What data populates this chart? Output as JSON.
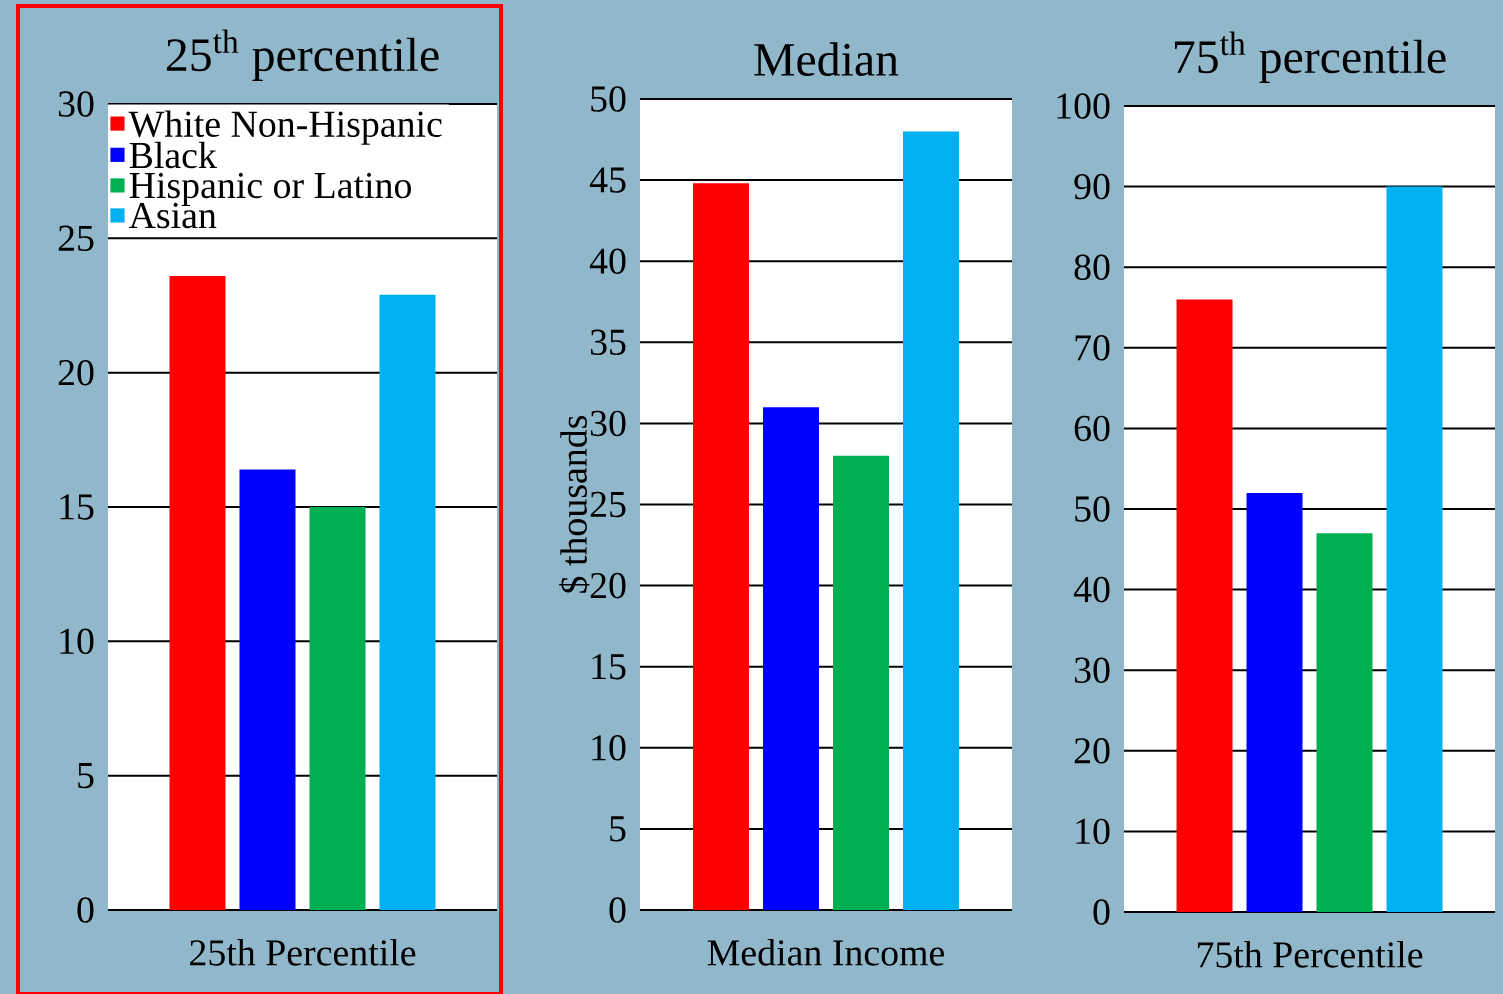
{
  "chart_data": [
    {
      "type": "bar",
      "title": "25$^{th}$ percentile",
      "categories": [
        "25th Percentile"
      ],
      "ylim": [
        0,
        30
      ],
      "yticks": [
        0,
        5,
        10,
        15,
        20,
        25,
        30
      ],
      "grid": "y",
      "legend": "top left",
      "series": [
        {
          "name": "White Non-Hispanic",
          "color": "#ff0000",
          "values": [
            23.6
          ]
        },
        {
          "name": "Black",
          "color": "#0000ff",
          "values": [
            16.4
          ]
        },
        {
          "name": "Hispanic or Latino",
          "color": "#00b050",
          "values": [
            15.0
          ]
        },
        {
          "name": "Asian",
          "color": "#00b0f0",
          "values": [
            22.9
          ]
        }
      ]
    },
    {
      "type": "bar",
      "title": "Median",
      "ylabel": "$ thousands",
      "categories": [
        "Median Income"
      ],
      "ylim": [
        0,
        50
      ],
      "yticks": [
        0,
        5,
        10,
        15,
        20,
        25,
        30,
        35,
        40,
        45,
        50
      ],
      "grid": "y",
      "series": [
        {
          "color": "#ff0000",
          "values": [
            44.8
          ]
        },
        {
          "color": "#0000ff",
          "values": [
            31.0
          ]
        },
        {
          "color": "#00b050",
          "values": [
            28.0
          ]
        },
        {
          "color": "#00b0f0",
          "values": [
            48.0
          ]
        }
      ]
    },
    {
      "type": "bar",
      "title": "75$^{th}$ percentile",
      "categories": [
        "75th Percentile"
      ],
      "ylim": [
        0,
        100
      ],
      "yticks": [
        0,
        10,
        20,
        30,
        40,
        50,
        60,
        70,
        80,
        90,
        100
      ],
      "grid": "y",
      "series": [
        {
          "color": "#ff0000",
          "values": [
            76
          ]
        },
        {
          "color": "#0000ff",
          "values": [
            52
          ]
        },
        {
          "color": "#00b050",
          "values": [
            47
          ]
        },
        {
          "color": "#00b0f0",
          "values": [
            90
          ]
        }
      ]
    }
  ]
}
